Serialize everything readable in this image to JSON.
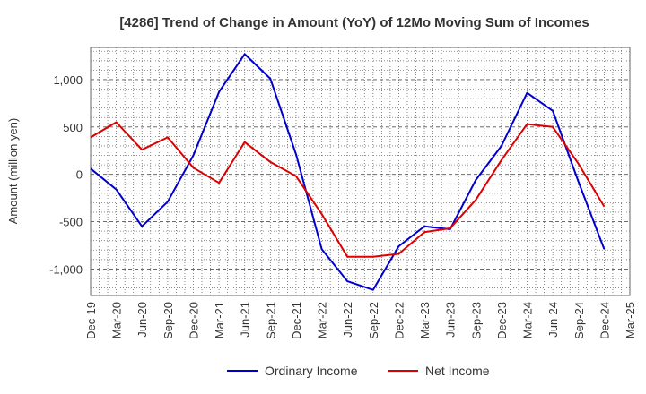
{
  "chart_data": {
    "type": "line",
    "title": "[4286]  Trend of Change in Amount (YoY) of 12Mo Moving Sum of Incomes",
    "xlabel": "",
    "ylabel": "Amount (million yen)",
    "categories": [
      "Dec-19",
      "Mar-20",
      "Jun-20",
      "Sep-20",
      "Dec-20",
      "Mar-21",
      "Jun-21",
      "Sep-21",
      "Dec-21",
      "Mar-22",
      "Jun-22",
      "Sep-22",
      "Dec-22",
      "Mar-23",
      "Jun-23",
      "Sep-23",
      "Dec-23",
      "Mar-24",
      "Jun-24",
      "Sep-24",
      "Dec-24",
      "Mar-25"
    ],
    "ylim": [
      -1280,
      1340
    ],
    "yticks": [
      -1000,
      -500,
      0,
      500,
      1000
    ],
    "ytick_labels": [
      "-1,000",
      "-500",
      "0",
      "500",
      "1,000"
    ],
    "grid": true,
    "legend_position": "bottom",
    "series": [
      {
        "name": "Ordinary Income",
        "color": "#0000cc",
        "values": [
          60,
          -160,
          -550,
          -290,
          200,
          870,
          1270,
          1010,
          210,
          -790,
          -1130,
          -1220,
          -760,
          -550,
          -580,
          -60,
          300,
          860,
          670,
          -80,
          -790,
          null
        ]
      },
      {
        "name": "Net Income",
        "color": "#dd0000",
        "values": [
          390,
          550,
          260,
          390,
          70,
          -90,
          340,
          130,
          -20,
          -420,
          -870,
          -870,
          -840,
          -610,
          -570,
          -270,
          150,
          530,
          500,
          110,
          -340,
          null
        ]
      }
    ]
  }
}
